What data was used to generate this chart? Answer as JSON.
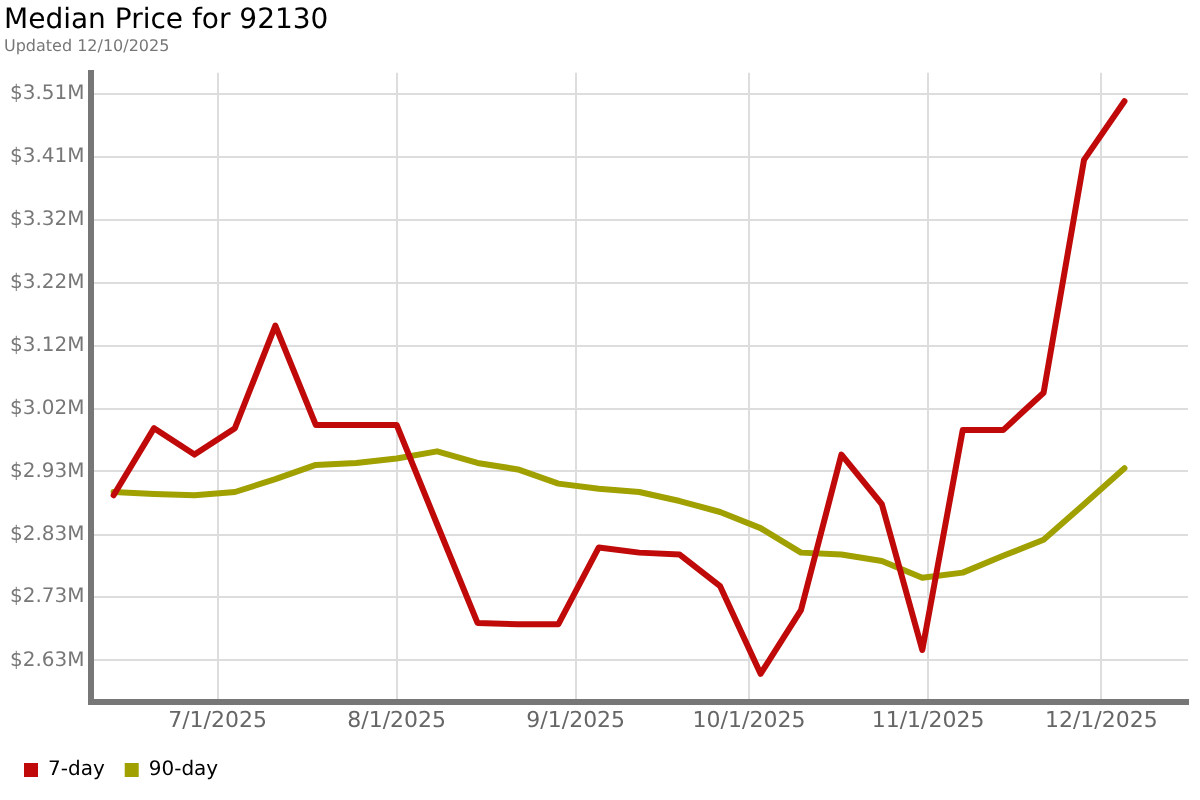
{
  "chart_data": {
    "type": "line",
    "title": "Median Price for 92130",
    "subtitle": "Updated 12/10/2025",
    "x": [
      "2025-06-13",
      "2025-06-20",
      "2025-06-27",
      "2025-07-04",
      "2025-07-11",
      "2025-07-18",
      "2025-07-25",
      "2025-08-01",
      "2025-08-08",
      "2025-08-15",
      "2025-08-22",
      "2025-08-29",
      "2025-09-05",
      "2025-09-12",
      "2025-09-19",
      "2025-09-26",
      "2025-10-03",
      "2025-10-10",
      "2025-10-17",
      "2025-10-24",
      "2025-10-31",
      "2025-11-07",
      "2025-11-14",
      "2025-11-21",
      "2025-11-28",
      "2025-12-05"
    ],
    "series": [
      {
        "name": "7-day",
        "color": "#c00a0a",
        "values": [
          2.89,
          2.994,
          2.953,
          2.994,
          3.153,
          2.999,
          2.999,
          2.999,
          2.845,
          2.692,
          2.69,
          2.69,
          2.809,
          2.801,
          2.798,
          2.749,
          2.613,
          2.712,
          2.953,
          2.876,
          2.65,
          2.991,
          2.991,
          3.049,
          3.41,
          3.501
        ]
      },
      {
        "name": "90-day",
        "color": "#a0a000",
        "values": [
          2.895,
          2.892,
          2.89,
          2.895,
          2.915,
          2.937,
          2.94,
          2.947,
          2.958,
          2.94,
          2.93,
          2.908,
          2.9,
          2.895,
          2.881,
          2.864,
          2.839,
          2.801,
          2.798,
          2.788,
          2.762,
          2.77,
          2.796,
          2.821,
          2.876,
          2.932
        ]
      }
    ],
    "xlim": [
      "2025-06-09",
      "2025-12-16"
    ],
    "xticks": [
      {
        "value": "2025-07-01",
        "label": "7/1/2025"
      },
      {
        "value": "2025-08-01",
        "label": "8/1/2025"
      },
      {
        "value": "2025-09-01",
        "label": "9/1/2025"
      },
      {
        "value": "2025-10-01",
        "label": "10/1/2025"
      },
      {
        "value": "2025-11-01",
        "label": "11/1/2025"
      },
      {
        "value": "2025-12-01",
        "label": "12/1/2025"
      }
    ],
    "ylim": [
      2.57,
      3.545
    ],
    "yticks": [
      {
        "value": 2.634,
        "label": "$2.63M"
      },
      {
        "value": 2.732,
        "label": "$2.73M"
      },
      {
        "value": 2.829,
        "label": "$2.83M"
      },
      {
        "value": 2.927,
        "label": "$2.93M"
      },
      {
        "value": 3.024,
        "label": "$3.02M"
      },
      {
        "value": 3.122,
        "label": "$3.12M"
      },
      {
        "value": 3.219,
        "label": "$3.22M"
      },
      {
        "value": 3.317,
        "label": "$3.32M"
      },
      {
        "value": 3.414,
        "label": "$3.41M"
      },
      {
        "value": 3.512,
        "label": "$3.51M"
      }
    ],
    "grid": true,
    "legend": "bottom left",
    "marker": "none",
    "line_style": "solid"
  }
}
